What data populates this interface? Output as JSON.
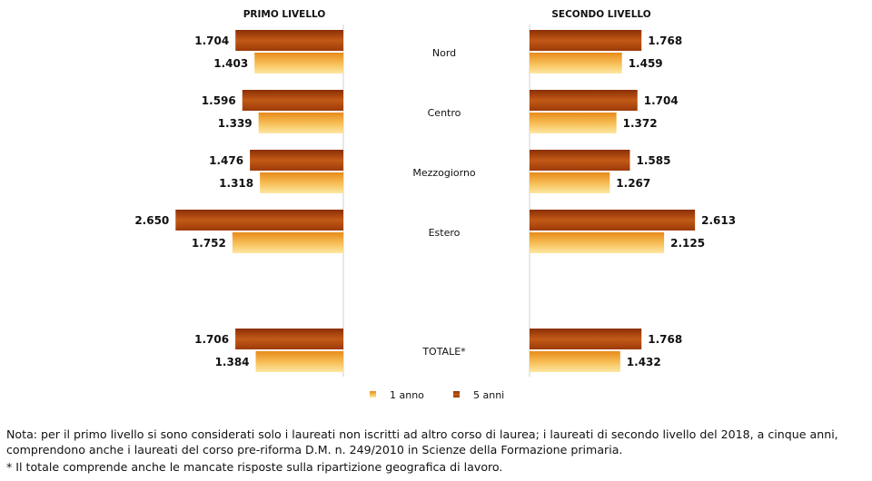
{
  "chart_data": {
    "type": "bar",
    "orientation": "horizontal",
    "panels": [
      {
        "title": "PRIMO LIVELLO",
        "side": "left"
      },
      {
        "title": "SECONDO LIVELLO",
        "side": "right"
      }
    ],
    "categories": [
      "Nord",
      "Centro",
      "Mezzogiorno",
      "Estero",
      "TOTALE*"
    ],
    "series": [
      {
        "name": "5 anni",
        "color": "#b34a0f",
        "primo_livello": [
          1704,
          1596,
          1476,
          2650,
          1706
        ],
        "secondo_livello": [
          1768,
          1704,
          1585,
          2613,
          1768
        ],
        "primo_labels": [
          "1.704",
          "1.596",
          "1.476",
          "2.650",
          "1.706"
        ],
        "secondo_labels": [
          "1.768",
          "1.704",
          "1.585",
          "2.613",
          "1.768"
        ]
      },
      {
        "name": "1 anno",
        "color": "#f2a73a",
        "primo_livello": [
          1403,
          1339,
          1318,
          1752,
          1384
        ],
        "secondo_livello": [
          1459,
          1372,
          1267,
          2125,
          1432
        ],
        "primo_labels": [
          "1.403",
          "1.339",
          "1.318",
          "1.752",
          "1.384"
        ],
        "secondo_labels": [
          "1.459",
          "1.372",
          "1.267",
          "2.125",
          "1.432"
        ]
      }
    ],
    "legend": {
      "position": "bottom",
      "entries": [
        "1 anno",
        "5 anni"
      ]
    },
    "grid": false
  },
  "notes": {
    "nota": "Nota: per il primo livello si sono considerati solo i laureati non iscritti ad altro corso di laurea; i laureati di secondo livello del 2018, a cinque anni, comprendono anche i laureati del corso pre-riforma D.M. n. 249/2010 in Scienze della Formazione primaria.",
    "totale": "* Il totale comprende anche le mancate risposte sulla ripartizione geografica di lavoro."
  }
}
